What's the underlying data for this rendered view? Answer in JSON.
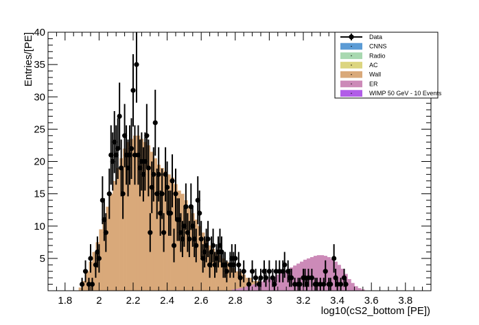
{
  "colors": {
    "CNNS": "#5b9bd5",
    "Radio": "#a8d8b0",
    "AC": "#dcd580",
    "Wall": "#d9a97a",
    "ER": "#cc8ab8",
    "WIMP": "#b15de8",
    "Data": "#000000"
  },
  "chart_data": {
    "type": "bar",
    "xlabel": "log10(cS2_bottom [PE])",
    "ylabel": "Entries/[PE]",
    "xlim": [
      1.7,
      3.95
    ],
    "ylim": [
      0,
      40
    ],
    "grid": false,
    "legend_position": "top-right",
    "x_ticks": [
      "1.8",
      "2",
      "2.2",
      "2.4",
      "2.6",
      "2.8",
      "3",
      "3.2",
      "3.4",
      "3.6",
      "3.8"
    ],
    "y_ticks": [
      "5",
      "10",
      "15",
      "20",
      "25",
      "30",
      "35",
      "40"
    ],
    "legend": [
      {
        "label": "Data",
        "key": "Data",
        "style": "marker"
      },
      {
        "label": "CNNS",
        "key": "CNNS",
        "style": "fill"
      },
      {
        "label": "Radio",
        "key": "Radio",
        "style": "fill"
      },
      {
        "label": "AC",
        "key": "AC",
        "style": "fill"
      },
      {
        "label": "Wall",
        "key": "Wall",
        "style": "fill"
      },
      {
        "label": "ER",
        "key": "ER",
        "style": "fill"
      },
      {
        "label": "WIMP 50 GeV - 10 Events",
        "key": "WIMP",
        "style": "fill"
      }
    ],
    "bin_width": 0.02,
    "series": [
      {
        "name": "Wall",
        "x": [
          1.89,
          1.91,
          1.93,
          1.95,
          1.97,
          1.99,
          2.01,
          2.03,
          2.05,
          2.07,
          2.09,
          2.11,
          2.13,
          2.15,
          2.17,
          2.19,
          2.21,
          2.23,
          2.25,
          2.27,
          2.29,
          2.31,
          2.33,
          2.35,
          2.37,
          2.39,
          2.41,
          2.43,
          2.45,
          2.47,
          2.49,
          2.51,
          2.53,
          2.55,
          2.57,
          2.59,
          2.61,
          2.63,
          2.65,
          2.67,
          2.69,
          2.71,
          2.73,
          2.75,
          2.77,
          2.79,
          2.81,
          2.83,
          2.85,
          2.87,
          2.89,
          2.91,
          2.93,
          2.95,
          2.97,
          2.99,
          3.01,
          3.03,
          3.05
        ],
        "values": [
          0.5,
          1.5,
          3,
          4.5,
          6,
          7.5,
          9.5,
          11,
          13,
          15,
          17,
          19,
          20.5,
          22,
          23,
          23.5,
          24,
          24,
          23.5,
          23,
          22.5,
          21.5,
          20.5,
          19.5,
          19,
          18.5,
          18,
          17.5,
          16.5,
          15.5,
          15,
          14,
          13,
          12,
          11,
          10,
          9,
          8,
          7,
          6.5,
          6,
          5.5,
          5,
          4.5,
          4,
          3.5,
          3,
          3,
          2.5,
          2,
          2,
          1.5,
          1.5,
          1,
          1,
          1,
          0.5,
          0.5,
          0.3
        ]
      },
      {
        "name": "ER",
        "x": [
          2.79,
          2.81,
          2.83,
          2.85,
          2.87,
          2.89,
          2.91,
          2.93,
          2.95,
          2.97,
          2.99,
          3.01,
          3.03,
          3.05,
          3.07,
          3.09,
          3.11,
          3.13,
          3.15,
          3.17,
          3.19,
          3.21,
          3.23,
          3.25,
          3.27,
          3.29,
          3.31,
          3.33,
          3.35,
          3.37,
          3.39,
          3.41,
          3.43,
          3.45,
          3.47,
          3.49,
          3.51,
          3.53,
          3.55
        ],
        "values": [
          0.2,
          0.3,
          0.4,
          0.5,
          0.7,
          0.8,
          1,
          1.2,
          1.4,
          1.6,
          1.8,
          2,
          2.2,
          2.5,
          2.8,
          3,
          3.3,
          3.6,
          3.9,
          4.2,
          4.5,
          4.8,
          5,
          5.2,
          5.4,
          5.5,
          5.5,
          5.4,
          5.2,
          4.9,
          4.5,
          4,
          3.4,
          2.6,
          1.8,
          1.2,
          0.7,
          0.4,
          0.2
        ]
      },
      {
        "name": "Data",
        "x": [
          1.9,
          1.92,
          1.94,
          1.95,
          1.96,
          1.98,
          1.99,
          2.0,
          2.02,
          2.03,
          2.04,
          2.06,
          2.07,
          2.08,
          2.09,
          2.1,
          2.11,
          2.12,
          2.13,
          2.14,
          2.15,
          2.16,
          2.17,
          2.18,
          2.19,
          2.2,
          2.21,
          2.22,
          2.23,
          2.24,
          2.25,
          2.26,
          2.27,
          2.28,
          2.29,
          2.3,
          2.31,
          2.32,
          2.33,
          2.34,
          2.35,
          2.36,
          2.37,
          2.38,
          2.39,
          2.4,
          2.41,
          2.42,
          2.43,
          2.44,
          2.45,
          2.46,
          2.47,
          2.48,
          2.49,
          2.5,
          2.51,
          2.52,
          2.53,
          2.54,
          2.55,
          2.56,
          2.57,
          2.58,
          2.59,
          2.6,
          2.61,
          2.62,
          2.63,
          2.64,
          2.65,
          2.66,
          2.67,
          2.68,
          2.69,
          2.7,
          2.71,
          2.72,
          2.73,
          2.74,
          2.75,
          2.77,
          2.78,
          2.79,
          2.8,
          2.82,
          2.83,
          2.85,
          2.88,
          2.9,
          2.92,
          2.94,
          2.95,
          2.97,
          2.98,
          3.0,
          3.02,
          3.03,
          3.04,
          3.06,
          3.08,
          3.09,
          3.11,
          3.12,
          3.13,
          3.15,
          3.17,
          3.18,
          3.2,
          3.21,
          3.22,
          3.23,
          3.25,
          3.27,
          3.28,
          3.3,
          3.32,
          3.33,
          3.35,
          3.36,
          3.38,
          3.39,
          3.4,
          3.42,
          3.44,
          3.45
        ],
        "values": [
          1,
          3,
          1,
          5,
          1,
          4,
          6,
          5,
          14,
          11,
          9,
          15,
          21,
          20,
          23,
          21,
          22,
          27,
          19,
          15,
          24,
          21,
          19,
          21,
          22,
          31,
          21,
          35,
          21,
          19,
          20,
          18,
          20,
          24,
          19,
          9,
          16,
          18,
          26,
          15,
          18,
          12,
          15,
          9,
          18,
          16,
          12,
          12,
          17,
          7,
          15,
          11,
          11,
          9,
          8,
          10,
          13,
          9,
          8,
          13,
          10,
          8,
          7,
          14,
          12,
          8,
          5,
          6,
          7,
          8,
          4,
          6,
          7,
          4,
          5,
          6,
          7,
          6,
          4,
          4,
          3,
          4,
          5,
          4,
          5,
          4,
          2,
          3,
          1,
          3,
          2,
          1,
          2,
          3,
          2,
          3,
          2,
          1,
          3,
          3,
          3,
          4,
          3,
          2,
          2,
          1,
          1,
          1,
          2,
          2,
          1,
          2,
          2,
          1,
          1,
          1,
          1,
          3,
          1,
          1,
          5,
          2,
          1,
          1,
          2,
          1
        ],
        "errors": [
          1,
          1.7,
          1,
          2.2,
          1,
          2,
          2.4,
          2.2,
          3.7,
          3.3,
          3,
          3.9,
          4.6,
          4.5,
          4.8,
          4.6,
          4.7,
          5.2,
          4.4,
          3.9,
          4.9,
          4.6,
          4.4,
          4.6,
          4.7,
          5.6,
          4.6,
          5.9,
          4.6,
          4.4,
          4.5,
          4.2,
          4.5,
          4.9,
          4.4,
          3,
          4,
          4.2,
          5.1,
          3.9,
          4.2,
          3.5,
          3.9,
          3,
          4.2,
          4,
          3.5,
          3.5,
          4.1,
          2.6,
          3.9,
          3.3,
          3.3,
          3,
          2.8,
          3.2,
          3.6,
          3,
          2.8,
          3.6,
          3.2,
          2.8,
          2.6,
          3.7,
          3.5,
          2.8,
          2.2,
          2.4,
          2.6,
          2.8,
          2,
          2.4,
          2.6,
          2,
          2.2,
          2.4,
          2.6,
          2.4,
          2,
          2,
          1.7,
          2,
          2.2,
          2,
          2.2,
          2,
          1.4,
          1.7,
          1,
          1.7,
          1.4,
          1,
          1.4,
          1.7,
          1.4,
          1.7,
          1.4,
          1,
          1.7,
          1.7,
          1.7,
          2,
          1.7,
          1.4,
          1.4,
          1,
          1,
          1,
          1.4,
          1.4,
          1,
          1.4,
          1.4,
          1,
          1,
          1,
          1,
          1.7,
          1,
          1,
          2.2,
          1.4,
          1,
          1,
          1.4,
          1
        ]
      }
    ]
  }
}
